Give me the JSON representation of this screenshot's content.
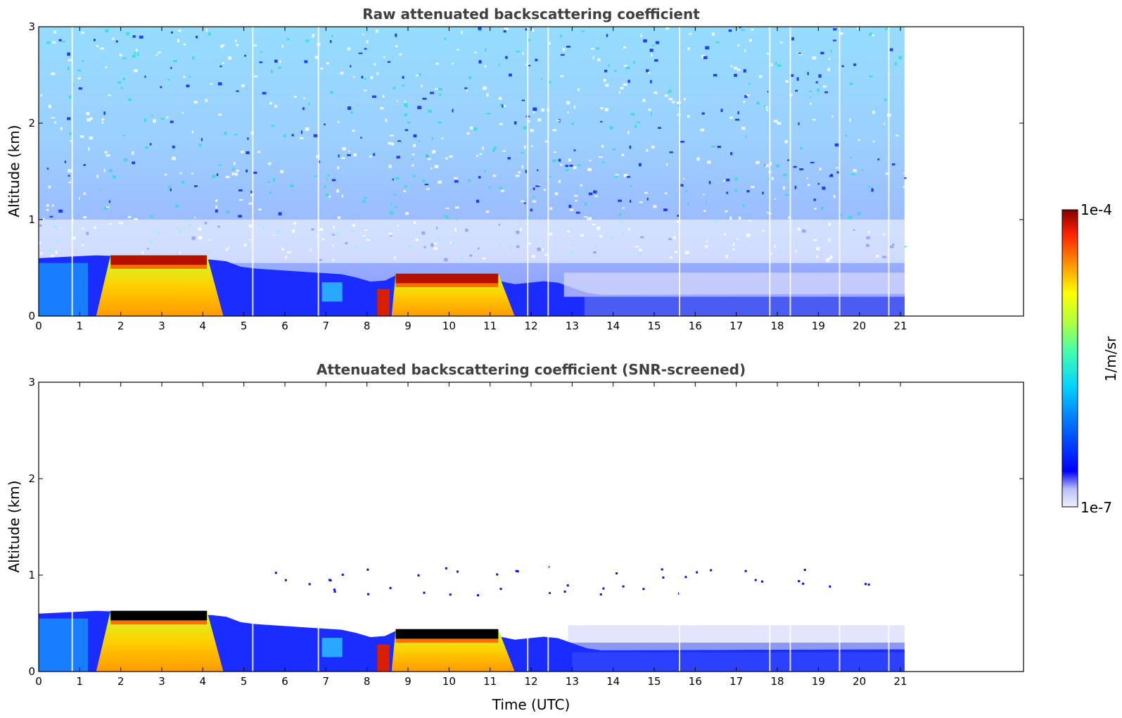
{
  "chart_data": [
    {
      "type": "heatmap",
      "title": "Raw attenuated backscattering coefficient",
      "xlabel": "",
      "ylabel": "Altitude (km)",
      "xlim": [
        0,
        24
      ],
      "ylim": [
        0,
        3
      ],
      "x_ticks": [
        "0",
        "1",
        "2",
        "3",
        "4",
        "5",
        "6",
        "7",
        "8",
        "9",
        "10",
        "11",
        "12",
        "13",
        "14",
        "15",
        "16",
        "17",
        "18",
        "19",
        "20",
        "21"
      ],
      "y_ticks": [
        "0",
        "1",
        "2",
        "3"
      ],
      "data_end_hour": 21.1,
      "boundary_layer_top_km": [
        [
          0,
          0.6
        ],
        [
          1.4,
          0.63
        ],
        [
          4.5,
          0.58
        ],
        [
          5,
          0.5
        ],
        [
          7.5,
          0.43
        ],
        [
          8.3,
          0.33
        ],
        [
          8.7,
          0.44
        ],
        [
          10.5,
          0.43
        ],
        [
          11.6,
          0.33
        ],
        [
          12.5,
          0.37
        ],
        [
          13.5,
          0.22
        ],
        [
          21.1,
          0.23
        ]
      ],
      "cloud_layers": [
        {
          "start": 1.4,
          "end": 4.5,
          "base_km": 0.0,
          "top_km": 0.63,
          "peak": "strong"
        },
        {
          "start": 8.6,
          "end": 11.6,
          "base_km": 0.0,
          "top_km": 0.44,
          "peak": "strong"
        }
      ],
      "colormap": "jet",
      "grid": false
    },
    {
      "type": "heatmap",
      "title": "Attenuated backscattering coefficient (SNR-screened)",
      "xlabel": "Time (UTC)",
      "ylabel": "Altitude (km)",
      "xlim": [
        0,
        24
      ],
      "ylim": [
        0,
        3
      ],
      "x_ticks": [
        "0",
        "1",
        "2",
        "3",
        "4",
        "5",
        "6",
        "7",
        "8",
        "9",
        "10",
        "11",
        "12",
        "13",
        "14",
        "15",
        "16",
        "17",
        "18",
        "19",
        "20",
        "21"
      ],
      "y_ticks": [
        "0",
        "1",
        "2",
        "3"
      ],
      "data_end_hour": 21.1,
      "screened_mask_color": "#000000",
      "colormap": "jet",
      "grid": false
    }
  ],
  "colorbar": {
    "label": "1/m/sr",
    "max_label": "1e-4",
    "min_label": "1e-7",
    "scale": "log"
  }
}
